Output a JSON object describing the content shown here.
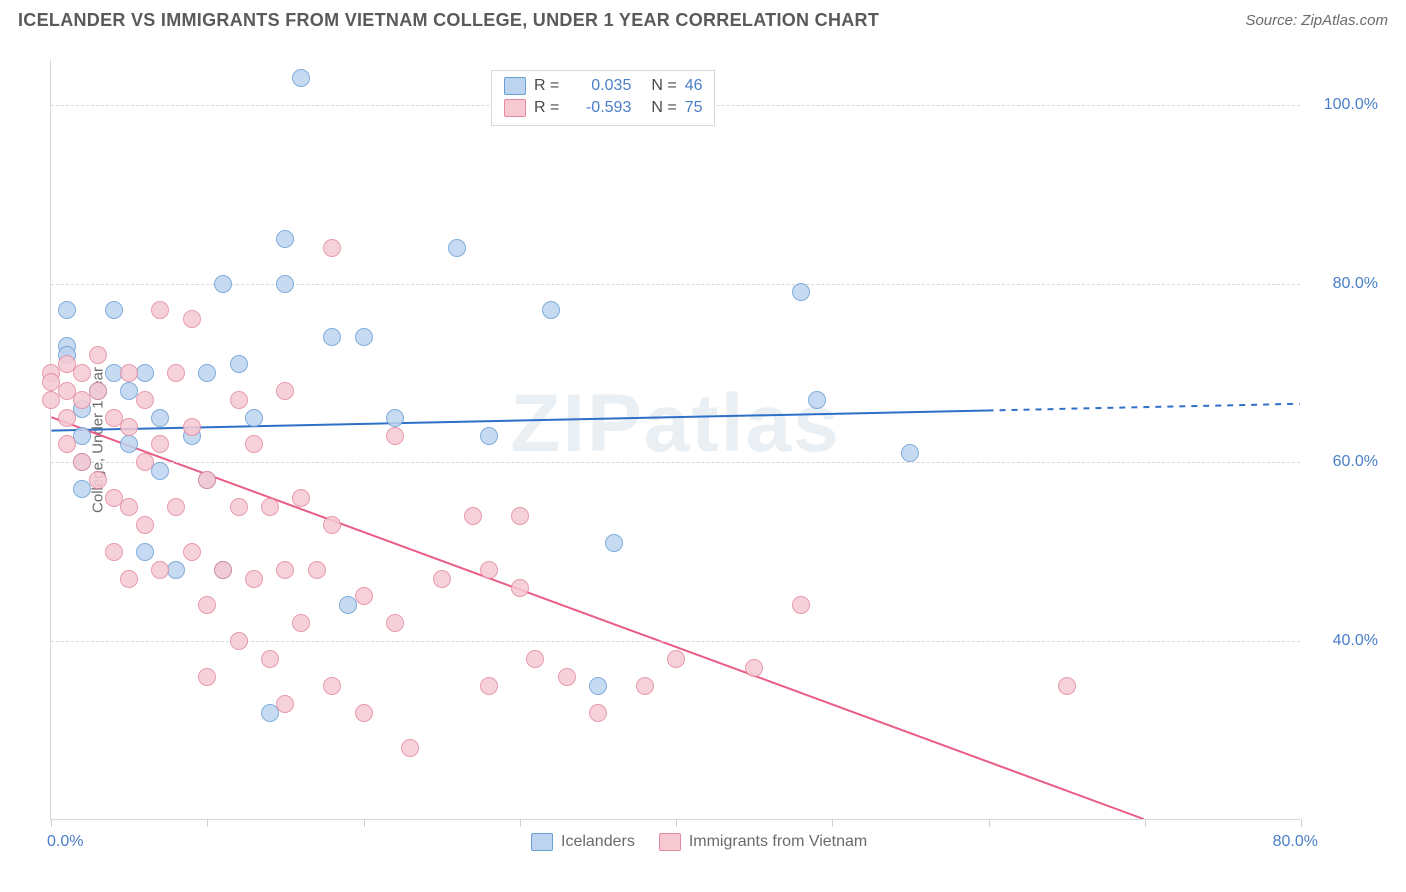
{
  "title": "ICELANDER VS IMMIGRANTS FROM VIETNAM COLLEGE, UNDER 1 YEAR CORRELATION CHART",
  "source": "Source: ZipAtlas.com",
  "watermark": "ZIPatlas",
  "chart": {
    "type": "scatter",
    "background_color": "#ffffff",
    "grid_color": "#d8d8d8",
    "grid_dash": "4,4",
    "axis_color": "#d8d8d8",
    "label_color": "#6b6b6b",
    "tick_label_color": "#4a7fc9",
    "label_fontsize": 15,
    "tick_fontsize": 16,
    "ylabel": "College, Under 1 year",
    "xlim": [
      0,
      80
    ],
    "ylim": [
      20,
      105
    ],
    "xticks": [
      0,
      10,
      20,
      30,
      40,
      50,
      60,
      70,
      80
    ],
    "xtick_labels_shown": {
      "0": "0.0%",
      "80": "80.0%"
    },
    "yticks": [
      40,
      60,
      80,
      100
    ],
    "ytick_labels": [
      "40.0%",
      "60.0%",
      "80.0%",
      "100.0%"
    ],
    "point_radius": 9,
    "point_opacity": 0.85,
    "series": [
      {
        "key": "icelanders",
        "label": "Icelanders",
        "fill": "#bdd4ef",
        "stroke": "#6a9fd6",
        "trend_color": "#2e6fc7",
        "trend_width": 2,
        "trend_dash_after_x": 60,
        "R": "0.035",
        "N": "46",
        "trend": {
          "x1": 0,
          "y1": 63.5,
          "x2": 80,
          "y2": 66.5
        },
        "points": [
          [
            1,
            77
          ],
          [
            1,
            73
          ],
          [
            1,
            72
          ],
          [
            2,
            66
          ],
          [
            2,
            63
          ],
          [
            2,
            60
          ],
          [
            2,
            57
          ],
          [
            3,
            68
          ],
          [
            4,
            77
          ],
          [
            4,
            70
          ],
          [
            5,
            68
          ],
          [
            5,
            62
          ],
          [
            6,
            70
          ],
          [
            6,
            50
          ],
          [
            7,
            65
          ],
          [
            7,
            59
          ],
          [
            8,
            48
          ],
          [
            9,
            63
          ],
          [
            10,
            70
          ],
          [
            10,
            58
          ],
          [
            11,
            80
          ],
          [
            11,
            48
          ],
          [
            12,
            71
          ],
          [
            13,
            65
          ],
          [
            14,
            32
          ],
          [
            15,
            85
          ],
          [
            15,
            80
          ],
          [
            16,
            103
          ],
          [
            18,
            74
          ],
          [
            19,
            44
          ],
          [
            20,
            74
          ],
          [
            22,
            65
          ],
          [
            26,
            84
          ],
          [
            28,
            63
          ],
          [
            32,
            77
          ],
          [
            35,
            35
          ],
          [
            36,
            51
          ],
          [
            48,
            79
          ],
          [
            49,
            67
          ],
          [
            55,
            61
          ]
        ]
      },
      {
        "key": "vietnam",
        "label": "Immigrants from Vietnam",
        "fill": "#f6c9d3",
        "stroke": "#e48aa0",
        "trend_color": "#e95d85",
        "trend_width": 2,
        "R": "-0.593",
        "N": "75",
        "trend": {
          "x1": 0,
          "y1": 65,
          "x2": 70,
          "y2": 20
        },
        "points": [
          [
            0,
            70
          ],
          [
            0,
            69
          ],
          [
            0,
            67
          ],
          [
            1,
            71
          ],
          [
            1,
            68
          ],
          [
            1,
            65
          ],
          [
            1,
            62
          ],
          [
            2,
            70
          ],
          [
            2,
            67
          ],
          [
            2,
            60
          ],
          [
            3,
            72
          ],
          [
            3,
            68
          ],
          [
            3,
            58
          ],
          [
            4,
            65
          ],
          [
            4,
            56
          ],
          [
            4,
            50
          ],
          [
            5,
            70
          ],
          [
            5,
            64
          ],
          [
            5,
            55
          ],
          [
            5,
            47
          ],
          [
            6,
            67
          ],
          [
            6,
            60
          ],
          [
            6,
            53
          ],
          [
            7,
            77
          ],
          [
            7,
            62
          ],
          [
            7,
            48
          ],
          [
            8,
            70
          ],
          [
            8,
            55
          ],
          [
            9,
            76
          ],
          [
            9,
            64
          ],
          [
            9,
            50
          ],
          [
            10,
            58
          ],
          [
            10,
            44
          ],
          [
            10,
            36
          ],
          [
            11,
            48
          ],
          [
            12,
            67
          ],
          [
            12,
            55
          ],
          [
            12,
            40
          ],
          [
            13,
            62
          ],
          [
            13,
            47
          ],
          [
            14,
            55
          ],
          [
            14,
            38
          ],
          [
            15,
            68
          ],
          [
            15,
            48
          ],
          [
            15,
            33
          ],
          [
            16,
            56
          ],
          [
            16,
            42
          ],
          [
            17,
            48
          ],
          [
            18,
            84
          ],
          [
            18,
            53
          ],
          [
            18,
            35
          ],
          [
            20,
            45
          ],
          [
            20,
            32
          ],
          [
            22,
            63
          ],
          [
            22,
            42
          ],
          [
            23,
            28
          ],
          [
            25,
            47
          ],
          [
            27,
            54
          ],
          [
            28,
            35
          ],
          [
            28,
            48
          ],
          [
            30,
            46
          ],
          [
            30,
            54
          ],
          [
            31,
            38
          ],
          [
            33,
            36
          ],
          [
            35,
            32
          ],
          [
            38,
            35
          ],
          [
            40,
            38
          ],
          [
            45,
            37
          ],
          [
            48,
            44
          ],
          [
            65,
            35
          ]
        ]
      }
    ],
    "legend_top": {
      "border_color": "#d8d8d8",
      "bg": "#ffffff"
    }
  }
}
